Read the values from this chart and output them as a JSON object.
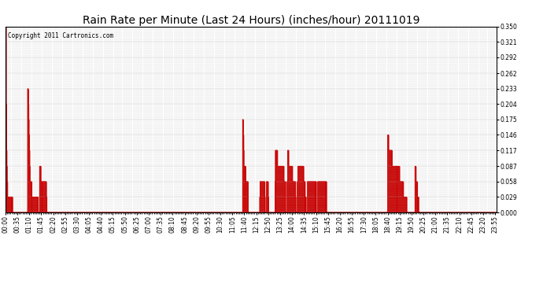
{
  "title": "Rain Rate per Minute (Last 24 Hours) (inches/hour) 20111019",
  "copyright": "Copyright 2011 Cartronics.com",
  "background_color": "#ffffff",
  "plot_bg_color": "#ffffff",
  "line_color": "#cc0000",
  "grid_color": "#b0b0b0",
  "ylim": [
    0.0,
    0.35
  ],
  "yticks": [
    0.0,
    0.029,
    0.058,
    0.087,
    0.117,
    0.146,
    0.175,
    0.204,
    0.233,
    0.262,
    0.292,
    0.321,
    0.35
  ],
  "total_minutes": 1440,
  "title_fontsize": 10,
  "tick_fontsize": 5.5,
  "xlabel_every_n_minutes": 35,
  "minor_tick_every_n_minutes": 5,
  "data_minutes": [
    0,
    1,
    2,
    3,
    4,
    5,
    6,
    7,
    8,
    9,
    10,
    11,
    12,
    13,
    14,
    15,
    16,
    17,
    18,
    19,
    65,
    66,
    67,
    68,
    69,
    70,
    71,
    72,
    73,
    74,
    75,
    76,
    77,
    78,
    79,
    80,
    81,
    82,
    83,
    84,
    85,
    86,
    87,
    88,
    89,
    90,
    91,
    92,
    93,
    94,
    100,
    101,
    102,
    103,
    104,
    105,
    106,
    107,
    108,
    109,
    110,
    111,
    112,
    113,
    114,
    115,
    116,
    117,
    118,
    119,
    695,
    696,
    697,
    698,
    699,
    700,
    701,
    702,
    703,
    704,
    705,
    706,
    707,
    708,
    709,
    745,
    746,
    747,
    748,
    749,
    750,
    751,
    752,
    753,
    754,
    755,
    756,
    757,
    758,
    759,
    765,
    766,
    767,
    768,
    769,
    790,
    791,
    792,
    793,
    794,
    795,
    796,
    797,
    798,
    799,
    800,
    801,
    802,
    803,
    804,
    805,
    806,
    807,
    808,
    809,
    810,
    811,
    812,
    813,
    814,
    815,
    816,
    817,
    818,
    819,
    825,
    826,
    827,
    828,
    829,
    830,
    831,
    832,
    833,
    834,
    835,
    836,
    837,
    838,
    839,
    840,
    841,
    842,
    843,
    844,
    845,
    846,
    847,
    848,
    849,
    855,
    856,
    857,
    858,
    859,
    860,
    861,
    862,
    863,
    864,
    865,
    866,
    867,
    868,
    869,
    870,
    871,
    872,
    873,
    874,
    875,
    876,
    877,
    878,
    879,
    885,
    886,
    887,
    888,
    889,
    890,
    891,
    892,
    893,
    894,
    895,
    896,
    897,
    898,
    899,
    900,
    901,
    902,
    903,
    904,
    905,
    906,
    907,
    908,
    909,
    915,
    916,
    917,
    918,
    919,
    920,
    921,
    922,
    923,
    924,
    925,
    926,
    927,
    928,
    929,
    930,
    931,
    932,
    933,
    934,
    935,
    936,
    937,
    938,
    939,
    1120,
    1121,
    1122,
    1123,
    1124,
    1125,
    1126,
    1127,
    1128,
    1129,
    1130,
    1131,
    1132,
    1133,
    1134,
    1135,
    1136,
    1137,
    1138,
    1139,
    1140,
    1141,
    1142,
    1143,
    1144,
    1145,
    1146,
    1147,
    1148,
    1149,
    1150,
    1151,
    1152,
    1153,
    1154,
    1155,
    1156,
    1157,
    1158,
    1159,
    1160,
    1161,
    1162,
    1163,
    1164,
    1165,
    1166,
    1167,
    1168,
    1169,
    1170,
    1171,
    1172,
    1173,
    1174,
    1200,
    1201,
    1202,
    1203,
    1204,
    1205,
    1206,
    1207,
    1208,
    1209
  ],
  "data_values": [
    0.35,
    0.204,
    0.117,
    0.087,
    0.058,
    0.029,
    0.029,
    0.029,
    0.029,
    0.029,
    0.029,
    0.029,
    0.029,
    0.029,
    0.029,
    0.029,
    0.029,
    0.029,
    0.029,
    0.029,
    0.233,
    0.204,
    0.175,
    0.146,
    0.117,
    0.087,
    0.058,
    0.058,
    0.058,
    0.058,
    0.058,
    0.029,
    0.029,
    0.029,
    0.029,
    0.029,
    0.029,
    0.029,
    0.029,
    0.029,
    0.029,
    0.029,
    0.029,
    0.029,
    0.029,
    0.029,
    0.029,
    0.029,
    0.029,
    0.029,
    0.087,
    0.087,
    0.087,
    0.058,
    0.058,
    0.058,
    0.058,
    0.058,
    0.058,
    0.058,
    0.058,
    0.058,
    0.058,
    0.058,
    0.058,
    0.058,
    0.058,
    0.058,
    0.058,
    0.029,
    0.175,
    0.146,
    0.117,
    0.087,
    0.087,
    0.087,
    0.087,
    0.087,
    0.058,
    0.058,
    0.058,
    0.058,
    0.058,
    0.058,
    0.058,
    0.029,
    0.058,
    0.058,
    0.058,
    0.058,
    0.058,
    0.058,
    0.058,
    0.058,
    0.058,
    0.058,
    0.058,
    0.058,
    0.058,
    0.029,
    0.058,
    0.058,
    0.058,
    0.058,
    0.029,
    0.058,
    0.117,
    0.117,
    0.117,
    0.117,
    0.117,
    0.087,
    0.087,
    0.087,
    0.087,
    0.087,
    0.087,
    0.087,
    0.087,
    0.087,
    0.087,
    0.087,
    0.087,
    0.087,
    0.087,
    0.087,
    0.087,
    0.087,
    0.087,
    0.087,
    0.058,
    0.058,
    0.058,
    0.058,
    0.058,
    0.058,
    0.058,
    0.117,
    0.117,
    0.087,
    0.087,
    0.087,
    0.087,
    0.087,
    0.087,
    0.087,
    0.087,
    0.087,
    0.087,
    0.087,
    0.058,
    0.058,
    0.058,
    0.058,
    0.058,
    0.058,
    0.058,
    0.058,
    0.058,
    0.029,
    0.058,
    0.058,
    0.087,
    0.087,
    0.087,
    0.087,
    0.087,
    0.087,
    0.087,
    0.087,
    0.087,
    0.087,
    0.087,
    0.087,
    0.087,
    0.087,
    0.087,
    0.087,
    0.058,
    0.058,
    0.058,
    0.058,
    0.029,
    0.029,
    0.029,
    0.058,
    0.058,
    0.058,
    0.058,
    0.058,
    0.058,
    0.058,
    0.058,
    0.058,
    0.058,
    0.058,
    0.058,
    0.058,
    0.058,
    0.058,
    0.058,
    0.058,
    0.058,
    0.058,
    0.058,
    0.058,
    0.058,
    0.058,
    0.058,
    0.058,
    0.058,
    0.058,
    0.058,
    0.058,
    0.058,
    0.058,
    0.058,
    0.058,
    0.058,
    0.058,
    0.058,
    0.058,
    0.058,
    0.058,
    0.058,
    0.058,
    0.058,
    0.058,
    0.058,
    0.058,
    0.058,
    0.058,
    0.058,
    0.058,
    0.058,
    0.146,
    0.146,
    0.117,
    0.117,
    0.117,
    0.117,
    0.117,
    0.117,
    0.117,
    0.117,
    0.117,
    0.117,
    0.087,
    0.087,
    0.087,
    0.087,
    0.087,
    0.087,
    0.087,
    0.087,
    0.087,
    0.087,
    0.087,
    0.087,
    0.087,
    0.087,
    0.087,
    0.087,
    0.087,
    0.087,
    0.087,
    0.087,
    0.087,
    0.087,
    0.058,
    0.058,
    0.058,
    0.058,
    0.058,
    0.058,
    0.058,
    0.058,
    0.058,
    0.058,
    0.058,
    0.029,
    0.029,
    0.029,
    0.029,
    0.029,
    0.029,
    0.029,
    0.029,
    0.029,
    0.029,
    0.087,
    0.087,
    0.058,
    0.058,
    0.058,
    0.058,
    0.029,
    0.029,
    0.029,
    0.029
  ]
}
